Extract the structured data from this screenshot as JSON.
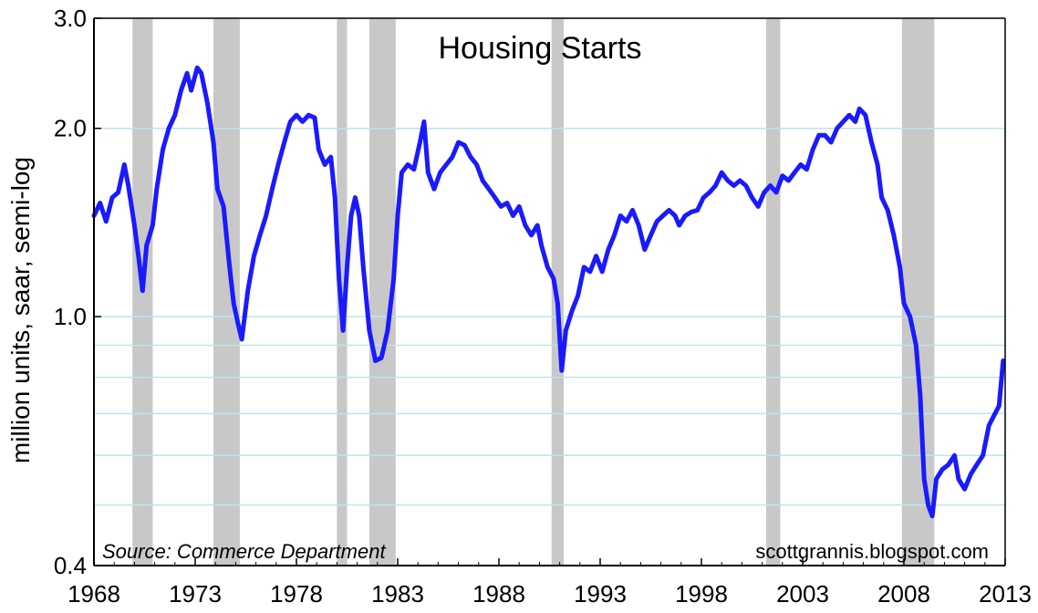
{
  "chart_data": {
    "type": "line",
    "title": "Housing Starts",
    "ylabel": "million units, saar, semi-log",
    "xlabel": "",
    "x_tick_labels": [
      "1968",
      "1973",
      "1978",
      "1983",
      "1988",
      "1993",
      "1998",
      "2003",
      "2008",
      "2013"
    ],
    "y_tick_labels": [
      "0.4",
      "1.0",
      "2.0",
      "3.0"
    ],
    "y_tick_values": [
      0.4,
      1.0,
      2.0,
      3.0
    ],
    "y_scale": "log",
    "xlim": [
      1968,
      2013
    ],
    "ylim": [
      0.4,
      3.0
    ],
    "grid": "horizontal",
    "grid_values": [
      0.5,
      0.6,
      0.7,
      0.8,
      0.9,
      1.0,
      2.0,
      3.0
    ],
    "source": "Source:  Commerce Department",
    "credit": "scottgrannis.blogspot.com",
    "colors": {
      "series": "#1a1aff",
      "recession": "#c8c8c8",
      "grid": "#bfe3ef"
    },
    "recessions": [
      [
        1969.9,
        1970.9
      ],
      [
        1973.9,
        1975.2
      ],
      [
        1980.0,
        1980.5
      ],
      [
        1981.6,
        1982.9
      ],
      [
        1990.6,
        1991.2
      ],
      [
        2001.2,
        2001.9
      ],
      [
        2007.9,
        2009.5
      ]
    ],
    "series": [
      {
        "values": [
          [
            1968.0,
            1.45
          ],
          [
            1968.3,
            1.52
          ],
          [
            1968.6,
            1.42
          ],
          [
            1968.9,
            1.55
          ],
          [
            1969.2,
            1.58
          ],
          [
            1969.5,
            1.75
          ],
          [
            1969.7,
            1.62
          ],
          [
            1970.0,
            1.4
          ],
          [
            1970.2,
            1.25
          ],
          [
            1970.4,
            1.1
          ],
          [
            1970.6,
            1.3
          ],
          [
            1970.9,
            1.4
          ],
          [
            1971.1,
            1.6
          ],
          [
            1971.4,
            1.85
          ],
          [
            1971.7,
            2.0
          ],
          [
            1972.0,
            2.1
          ],
          [
            1972.3,
            2.3
          ],
          [
            1972.6,
            2.45
          ],
          [
            1972.8,
            2.3
          ],
          [
            1973.1,
            2.5
          ],
          [
            1973.3,
            2.45
          ],
          [
            1973.6,
            2.2
          ],
          [
            1973.9,
            1.9
          ],
          [
            1974.1,
            1.6
          ],
          [
            1974.4,
            1.5
          ],
          [
            1974.7,
            1.2
          ],
          [
            1974.9,
            1.05
          ],
          [
            1975.1,
            0.98
          ],
          [
            1975.3,
            0.92
          ],
          [
            1975.6,
            1.1
          ],
          [
            1975.9,
            1.25
          ],
          [
            1976.2,
            1.35
          ],
          [
            1976.5,
            1.45
          ],
          [
            1976.8,
            1.6
          ],
          [
            1977.1,
            1.75
          ],
          [
            1977.4,
            1.9
          ],
          [
            1977.7,
            2.05
          ],
          [
            1978.0,
            2.1
          ],
          [
            1978.3,
            2.05
          ],
          [
            1978.6,
            2.1
          ],
          [
            1978.9,
            2.08
          ],
          [
            1979.1,
            1.85
          ],
          [
            1979.4,
            1.75
          ],
          [
            1979.7,
            1.8
          ],
          [
            1979.9,
            1.55
          ],
          [
            1980.1,
            1.15
          ],
          [
            1980.3,
            0.95
          ],
          [
            1980.5,
            1.2
          ],
          [
            1980.7,
            1.45
          ],
          [
            1980.9,
            1.55
          ],
          [
            1981.1,
            1.45
          ],
          [
            1981.3,
            1.2
          ],
          [
            1981.6,
            0.95
          ],
          [
            1981.9,
            0.85
          ],
          [
            1982.2,
            0.86
          ],
          [
            1982.5,
            0.95
          ],
          [
            1982.8,
            1.15
          ],
          [
            1983.0,
            1.45
          ],
          [
            1983.2,
            1.7
          ],
          [
            1983.5,
            1.75
          ],
          [
            1983.8,
            1.72
          ],
          [
            1984.1,
            1.9
          ],
          [
            1984.3,
            2.05
          ],
          [
            1984.5,
            1.7
          ],
          [
            1984.8,
            1.6
          ],
          [
            1985.1,
            1.7
          ],
          [
            1985.4,
            1.75
          ],
          [
            1985.7,
            1.8
          ],
          [
            1986.0,
            1.9
          ],
          [
            1986.3,
            1.88
          ],
          [
            1986.6,
            1.8
          ],
          [
            1986.9,
            1.75
          ],
          [
            1987.2,
            1.65
          ],
          [
            1987.5,
            1.6
          ],
          [
            1987.8,
            1.55
          ],
          [
            1988.1,
            1.5
          ],
          [
            1988.4,
            1.52
          ],
          [
            1988.7,
            1.45
          ],
          [
            1989.0,
            1.5
          ],
          [
            1989.3,
            1.4
          ],
          [
            1989.6,
            1.35
          ],
          [
            1989.9,
            1.4
          ],
          [
            1990.1,
            1.3
          ],
          [
            1990.4,
            1.2
          ],
          [
            1990.7,
            1.15
          ],
          [
            1990.9,
            1.05
          ],
          [
            1991.1,
            0.82
          ],
          [
            1991.3,
            0.95
          ],
          [
            1991.6,
            1.02
          ],
          [
            1991.9,
            1.08
          ],
          [
            1992.2,
            1.2
          ],
          [
            1992.5,
            1.18
          ],
          [
            1992.8,
            1.25
          ],
          [
            1993.1,
            1.18
          ],
          [
            1993.4,
            1.28
          ],
          [
            1993.7,
            1.35
          ],
          [
            1994.0,
            1.45
          ],
          [
            1994.3,
            1.42
          ],
          [
            1994.6,
            1.48
          ],
          [
            1994.9,
            1.4
          ],
          [
            1995.2,
            1.28
          ],
          [
            1995.5,
            1.35
          ],
          [
            1995.8,
            1.42
          ],
          [
            1996.1,
            1.45
          ],
          [
            1996.4,
            1.48
          ],
          [
            1996.7,
            1.45
          ],
          [
            1996.9,
            1.4
          ],
          [
            1997.2,
            1.45
          ],
          [
            1997.5,
            1.47
          ],
          [
            1997.8,
            1.48
          ],
          [
            1998.1,
            1.55
          ],
          [
            1998.4,
            1.58
          ],
          [
            1998.7,
            1.62
          ],
          [
            1999.0,
            1.7
          ],
          [
            1999.3,
            1.65
          ],
          [
            1999.6,
            1.62
          ],
          [
            1999.9,
            1.65
          ],
          [
            2000.2,
            1.62
          ],
          [
            2000.5,
            1.55
          ],
          [
            2000.8,
            1.5
          ],
          [
            2001.1,
            1.58
          ],
          [
            2001.4,
            1.62
          ],
          [
            2001.7,
            1.58
          ],
          [
            2002.0,
            1.68
          ],
          [
            2002.3,
            1.65
          ],
          [
            2002.6,
            1.7
          ],
          [
            2002.9,
            1.75
          ],
          [
            2003.2,
            1.72
          ],
          [
            2003.5,
            1.85
          ],
          [
            2003.8,
            1.95
          ],
          [
            2004.1,
            1.95
          ],
          [
            2004.4,
            1.9
          ],
          [
            2004.7,
            2.0
          ],
          [
            2005.0,
            2.05
          ],
          [
            2005.3,
            2.1
          ],
          [
            2005.6,
            2.05
          ],
          [
            2005.8,
            2.15
          ],
          [
            2006.1,
            2.1
          ],
          [
            2006.4,
            1.9
          ],
          [
            2006.7,
            1.75
          ],
          [
            2006.9,
            1.55
          ],
          [
            2007.2,
            1.48
          ],
          [
            2007.5,
            1.35
          ],
          [
            2007.8,
            1.2
          ],
          [
            2008.0,
            1.05
          ],
          [
            2008.3,
            1.0
          ],
          [
            2008.6,
            0.9
          ],
          [
            2008.8,
            0.75
          ],
          [
            2009.0,
            0.55
          ],
          [
            2009.2,
            0.5
          ],
          [
            2009.4,
            0.48
          ],
          [
            2009.6,
            0.55
          ],
          [
            2009.9,
            0.57
          ],
          [
            2010.2,
            0.58
          ],
          [
            2010.5,
            0.6
          ],
          [
            2010.7,
            0.55
          ],
          [
            2011.0,
            0.53
          ],
          [
            2011.3,
            0.56
          ],
          [
            2011.6,
            0.58
          ],
          [
            2011.9,
            0.6
          ],
          [
            2012.2,
            0.67
          ],
          [
            2012.5,
            0.7
          ],
          [
            2012.7,
            0.72
          ],
          [
            2012.9,
            0.85
          ]
        ]
      }
    ]
  }
}
